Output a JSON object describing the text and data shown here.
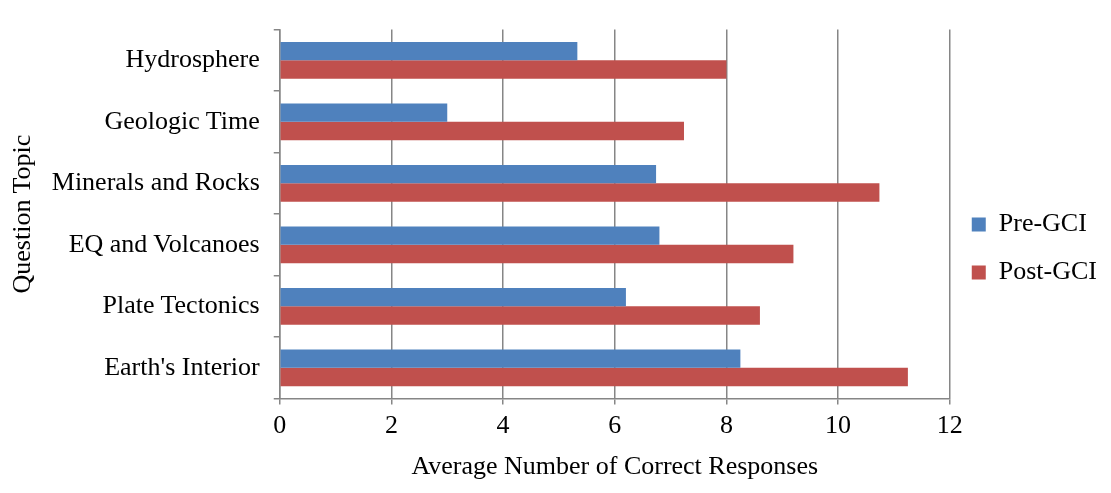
{
  "chart_data": {
    "type": "bar",
    "orientation": "horizontal",
    "xlabel": "Average Number of Correct Responses",
    "ylabel": "Question Topic",
    "categories": [
      "Hydrosphere",
      "Geologic Time",
      "Minerals and Rocks",
      "EQ and Volcanoes",
      "Plate Tectonics",
      "Earth's Interior"
    ],
    "series": [
      {
        "name": "Pre-GCI",
        "color": "#4f81bd",
        "values": [
          5.33,
          3.0,
          6.74,
          6.8,
          6.2,
          8.25
        ]
      },
      {
        "name": "Post-GCI",
        "color": "#c0504d",
        "values": [
          8.0,
          7.24,
          10.74,
          9.2,
          8.6,
          11.25
        ]
      }
    ],
    "xlim": [
      0,
      12
    ],
    "xticks": [
      0,
      2,
      4,
      6,
      8,
      10,
      12
    ],
    "grid": "x",
    "legend": "right"
  }
}
